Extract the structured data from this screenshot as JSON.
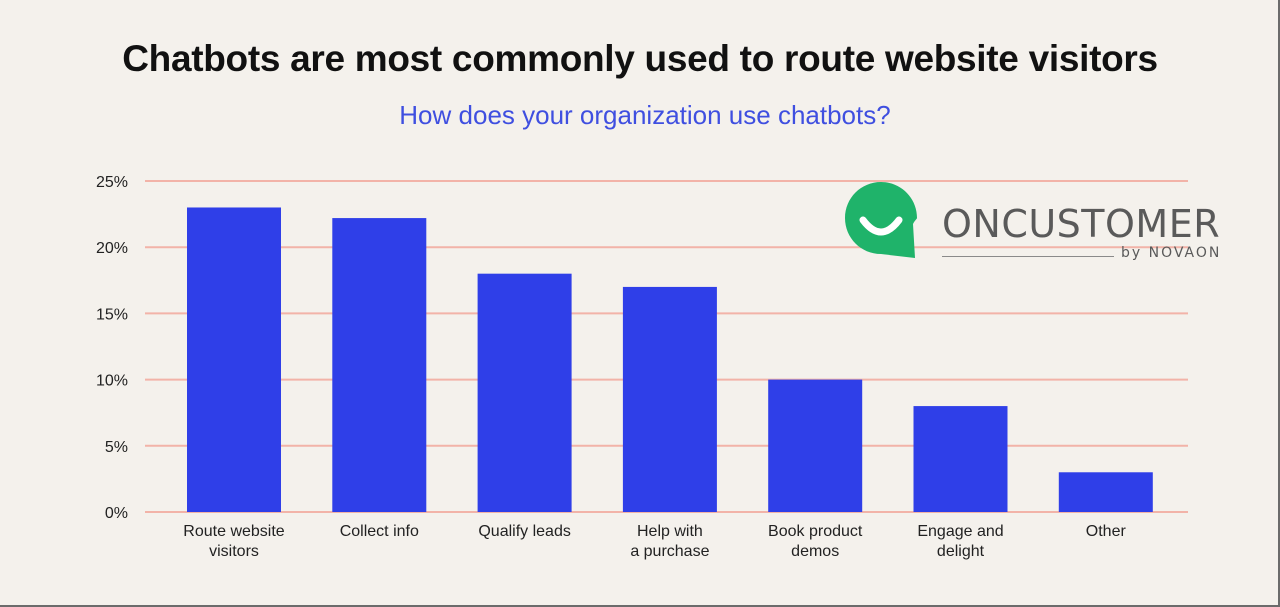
{
  "title": "Chatbots are most commonly used to route website visitors",
  "subtitle": "How does your organization use chatbots?",
  "logo": {
    "name": "ONCUSTOMER",
    "by": "by NOVAON",
    "icon": "smile-chat-bubble-icon",
    "color": "#1fb36a"
  },
  "colors": {
    "bar": "#2f3fe8",
    "grid": "#f2b3a8",
    "title": "#111111",
    "subtitle": "#3f4fe0"
  },
  "chart_data": {
    "type": "bar",
    "title": "Chatbots are most commonly used to route website visitors",
    "subtitle": "How does your organization use chatbots?",
    "categories": [
      [
        "Route website",
        "visitors"
      ],
      [
        "Collect info"
      ],
      [
        "Qualify leads"
      ],
      [
        "Help with",
        "a purchase"
      ],
      [
        "Book product",
        "demos"
      ],
      [
        "Engage and",
        "delight"
      ],
      [
        "Other"
      ]
    ],
    "values": [
      23,
      22.2,
      18,
      17,
      10,
      8,
      3
    ],
    "unit": "%",
    "ylim": [
      0,
      25
    ],
    "yticks": [
      0,
      5,
      10,
      15,
      20,
      25
    ],
    "ytick_labels": [
      "0%",
      "5%",
      "10%",
      "15%",
      "20%",
      "25%"
    ],
    "grid": true
  }
}
